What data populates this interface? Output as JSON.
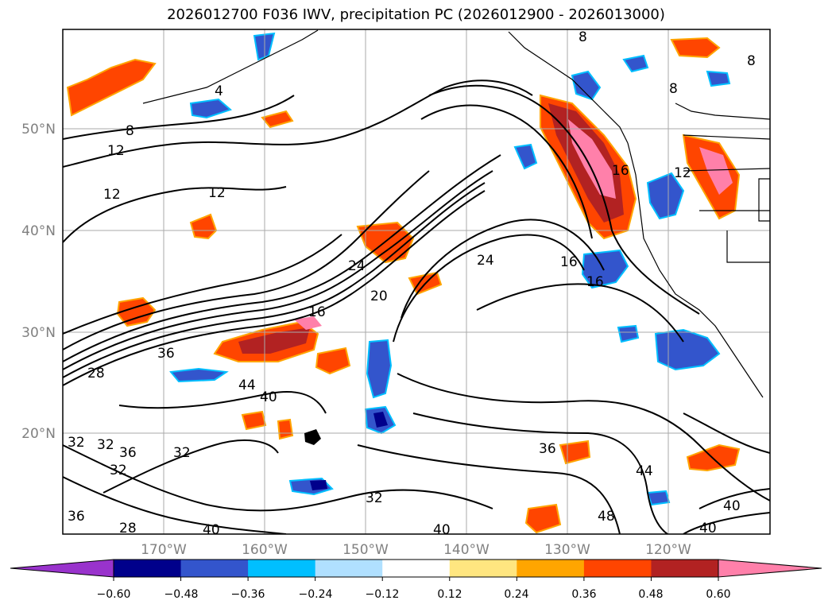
{
  "title": "2026012700 F036 IWV, precipitation PC (2026012900 - 2026013000)",
  "map": {
    "lat_labels": [
      "50°N",
      "40°N",
      "30°N",
      "20°N"
    ],
    "lon_labels": [
      "170°W",
      "160°W",
      "150°W",
      "140°W",
      "130°W",
      "120°W"
    ],
    "contour_labels": [
      "4",
      "8",
      "8",
      "8",
      "8",
      "12",
      "12",
      "12",
      "16",
      "16",
      "16",
      "16",
      "20",
      "24",
      "24",
      "28",
      "28",
      "32",
      "32",
      "32",
      "32",
      "32",
      "36",
      "36",
      "36",
      "36",
      "40",
      "40",
      "40",
      "40",
      "40",
      "44",
      "44",
      "48",
      "12"
    ]
  },
  "colorbar": {
    "tick_labels": [
      "−0.60",
      "−0.48",
      "−0.36",
      "−0.24",
      "−0.12",
      "0.12",
      "0.24",
      "0.36",
      "0.48",
      "0.60"
    ],
    "colors": [
      "#9933cc",
      "#00008b",
      "#3355cc",
      "#00bfff",
      "#b0e0ff",
      "#ffffff",
      "#ffe680",
      "#ffa500",
      "#ff4500",
      "#b22222",
      "#ff80aa",
      "#ff80aa"
    ]
  }
}
